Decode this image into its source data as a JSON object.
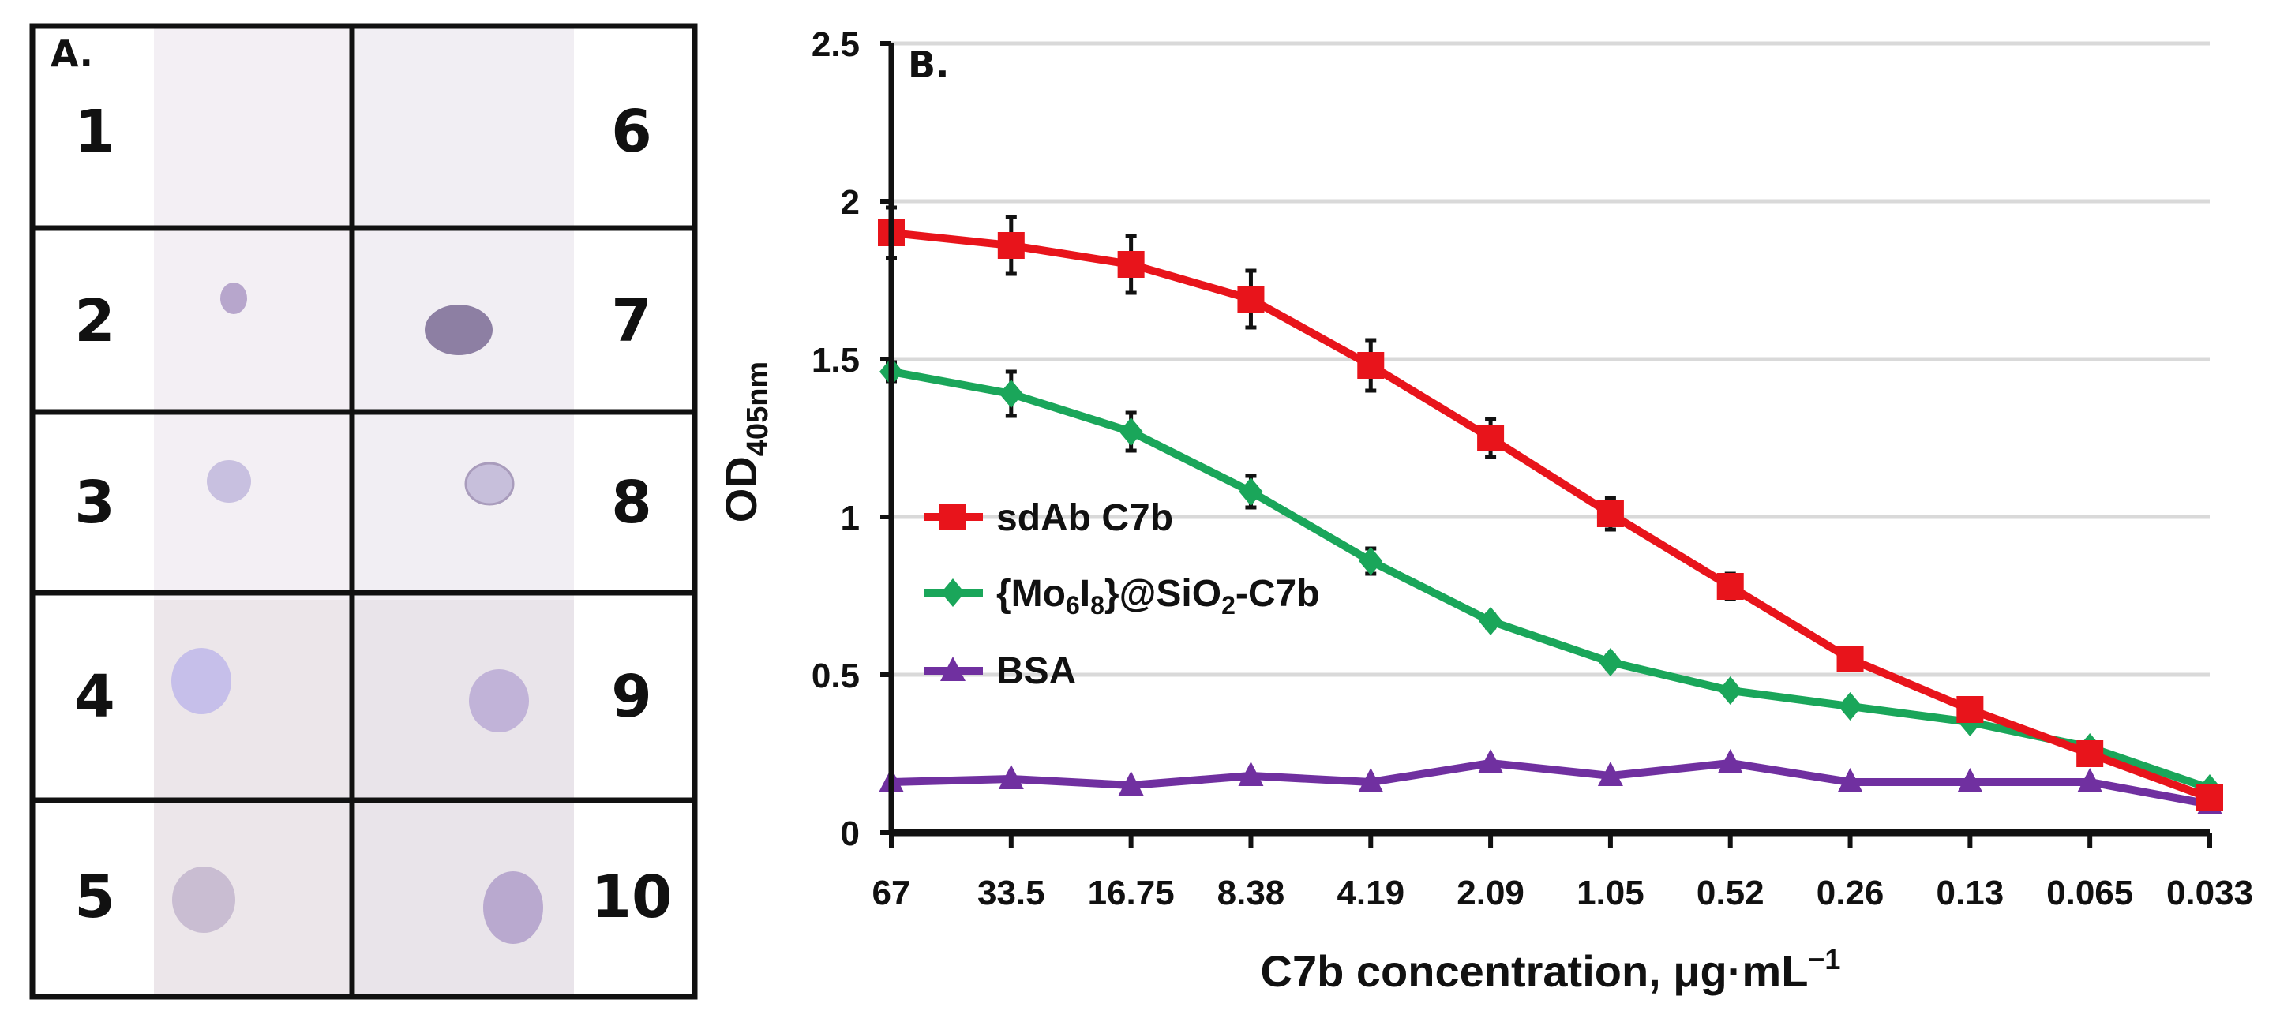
{
  "panel_a": {
    "label": "A.",
    "left_numbers": [
      "1",
      "2",
      "3",
      "4",
      "5"
    ],
    "right_numbers": [
      "6",
      "7",
      "8",
      "9",
      "10"
    ]
  },
  "chart_data": {
    "type": "line",
    "panel_label": "B.",
    "title": "",
    "xlabel": "C7b concentration, μg·mL",
    "xlabel_sup": "−1",
    "ylabel": "OD",
    "ylabel_sub": "405nm",
    "categories": [
      "67",
      "33.5",
      "16.75",
      "8.38",
      "4.19",
      "2.09",
      "1.05",
      "0.52",
      "0.26",
      "0.13",
      "0.065",
      "0.033"
    ],
    "ylim": [
      0,
      2.5
    ],
    "yticks": [
      "0",
      "0.5",
      "1",
      "1.5",
      "2",
      "2.5"
    ],
    "grid": true,
    "legend_position": "middle-left",
    "series": [
      {
        "name": "sdAb C7b",
        "color": "#e8141b",
        "marker": "square",
        "values": [
          1.9,
          1.86,
          1.8,
          1.69,
          1.48,
          1.25,
          1.01,
          0.78,
          0.55,
          0.39,
          0.25,
          0.11
        ],
        "errors": [
          0.08,
          0.09,
          0.09,
          0.09,
          0.08,
          0.06,
          0.05,
          0.04,
          0.02,
          0.02,
          0.02,
          0.02
        ]
      },
      {
        "name": "{Mo6I8}@SiO2-C7b",
        "color": "#1aa65a",
        "marker": "diamond",
        "values": [
          1.46,
          1.39,
          1.27,
          1.08,
          0.86,
          0.67,
          0.54,
          0.45,
          0.4,
          0.35,
          0.27,
          0.14
        ],
        "errors": [
          0.03,
          0.07,
          0.06,
          0.05,
          0.04,
          0.02,
          0.02,
          0.01,
          0.01,
          0.01,
          0.01,
          0.01
        ]
      },
      {
        "name": "BSA",
        "color": "#7030a0",
        "marker": "triangle",
        "values": [
          0.16,
          0.17,
          0.15,
          0.18,
          0.16,
          0.22,
          0.18,
          0.22,
          0.16,
          0.16,
          0.16,
          0.09
        ],
        "errors": [
          0,
          0,
          0,
          0,
          0,
          0,
          0,
          0,
          0,
          0,
          0,
          0
        ]
      }
    ],
    "legend_parts": {
      "s2_a": "{Mo",
      "s2_sub1": "6",
      "s2_b": "I",
      "s2_sub2": "8",
      "s2_c": "}@SiO",
      "s2_sub3": "2",
      "s2_d": "-C7b"
    }
  }
}
